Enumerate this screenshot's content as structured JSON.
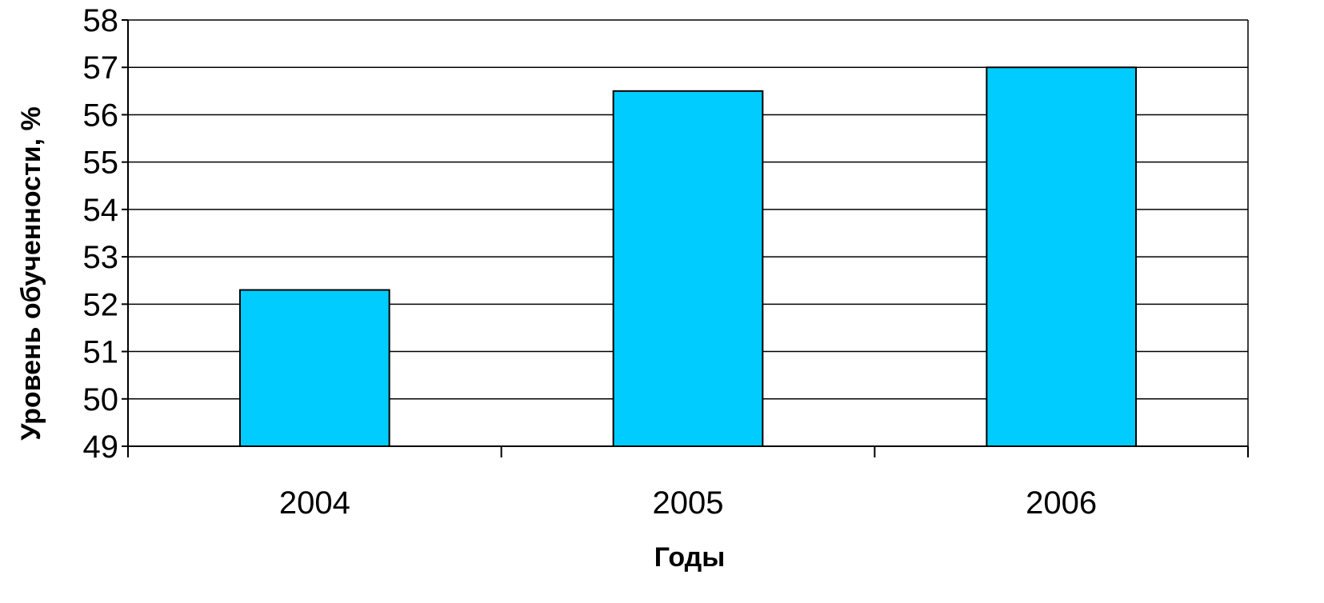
{
  "colors": {
    "bar_fill": "#00CCFF",
    "bar_stroke": "#000000",
    "grid": "#000000",
    "axis": "#000000",
    "text": "#000000"
  },
  "chart_data": {
    "type": "bar",
    "title": "",
    "xlabel": "Годы",
    "ylabel": "Уровень обученности, %",
    "categories": [
      "2004",
      "2005",
      "2006"
    ],
    "values": [
      52.3,
      56.5,
      57.0
    ],
    "ylim": [
      49,
      58
    ],
    "yticks": [
      49,
      50,
      51,
      52,
      53,
      54,
      55,
      56,
      57,
      58
    ],
    "grid": true,
    "legend": "none"
  }
}
